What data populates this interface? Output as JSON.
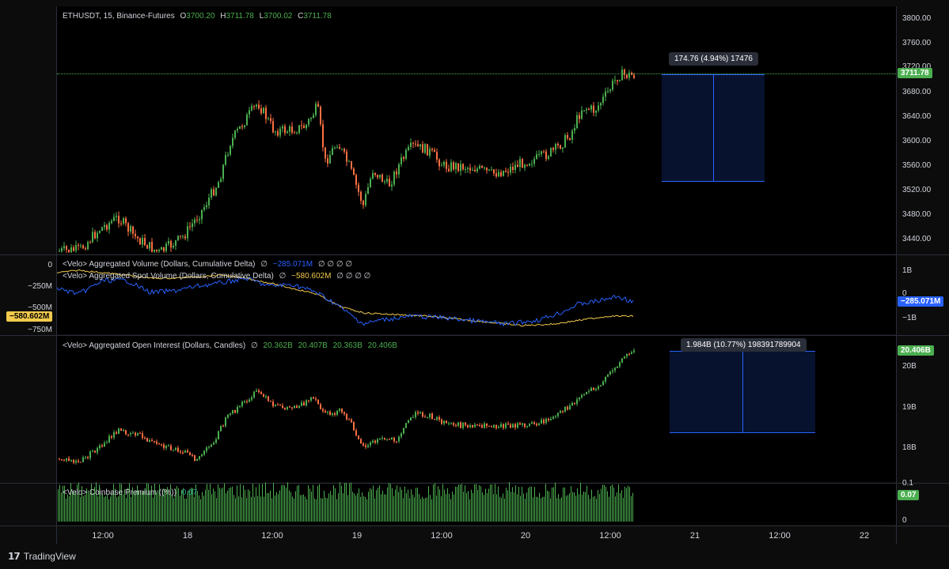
{
  "main": {
    "legend": {
      "symbol": "ETHUSDT, 15, Binance-Futures",
      "o_label": "O",
      "o": "3700.20",
      "h_label": "H",
      "h": "3711.78",
      "l_label": "L",
      "l": "3700.02",
      "c_label": "C",
      "c": "3711.78"
    },
    "axis": [
      "3800.00",
      "3760.00",
      "3720.00",
      "3680.00",
      "3640.00",
      "3600.00",
      "3560.00",
      "3520.00",
      "3480.00",
      "3440.00"
    ],
    "last_price": "3711.78",
    "measure_label": "174.76 (4.94%) 17476",
    "colors": {
      "up": "#4caf50",
      "down": "#ff7043",
      "accent": "#2962ff"
    }
  },
  "cvd": {
    "legend1": {
      "title": "<Velo> Aggregated Volume (Dollars, Cumulative Delta)",
      "symbol": "∅",
      "value": "−285.071M",
      "trail": "∅ ∅ ∅ ∅"
    },
    "legend2": {
      "title": "<Velo> Aggregated Spot Volume (Dollars, Cumulative Delta)",
      "symbol": "∅",
      "value": "−580.602M",
      "trail": "∅ ∅ ∅ ∅"
    },
    "axis_left": [
      "0",
      "−250M",
      "−500M",
      "−750M"
    ],
    "axis_right": [
      "1B",
      "0",
      "−1B"
    ],
    "left_tag": "−580.602M",
    "right_tag": "−285.071M"
  },
  "oi": {
    "legend": {
      "title": "<Velo> Aggregated Open Interest (Dollars, Candles)",
      "symbol": "∅",
      "v1": "20.362B",
      "v2": "20.407B",
      "v3": "20.363B",
      "v4": "20.406B"
    },
    "axis": [
      "20B",
      "19B",
      "18B"
    ],
    "tag": "20.406B",
    "measure_label": "1.984B (10.77%) 198391789904"
  },
  "premium": {
    "legend": {
      "title": "<Velo> Coinbase Premium ((%))",
      "value": "0.07"
    },
    "axis": [
      "0.1",
      "0"
    ],
    "tag": "0.07"
  },
  "time_axis": [
    "12:00",
    "18",
    "12:00",
    "19",
    "12:00",
    "20",
    "12:00",
    "21",
    "12:00",
    "22"
  ],
  "brand": "TradingView"
}
